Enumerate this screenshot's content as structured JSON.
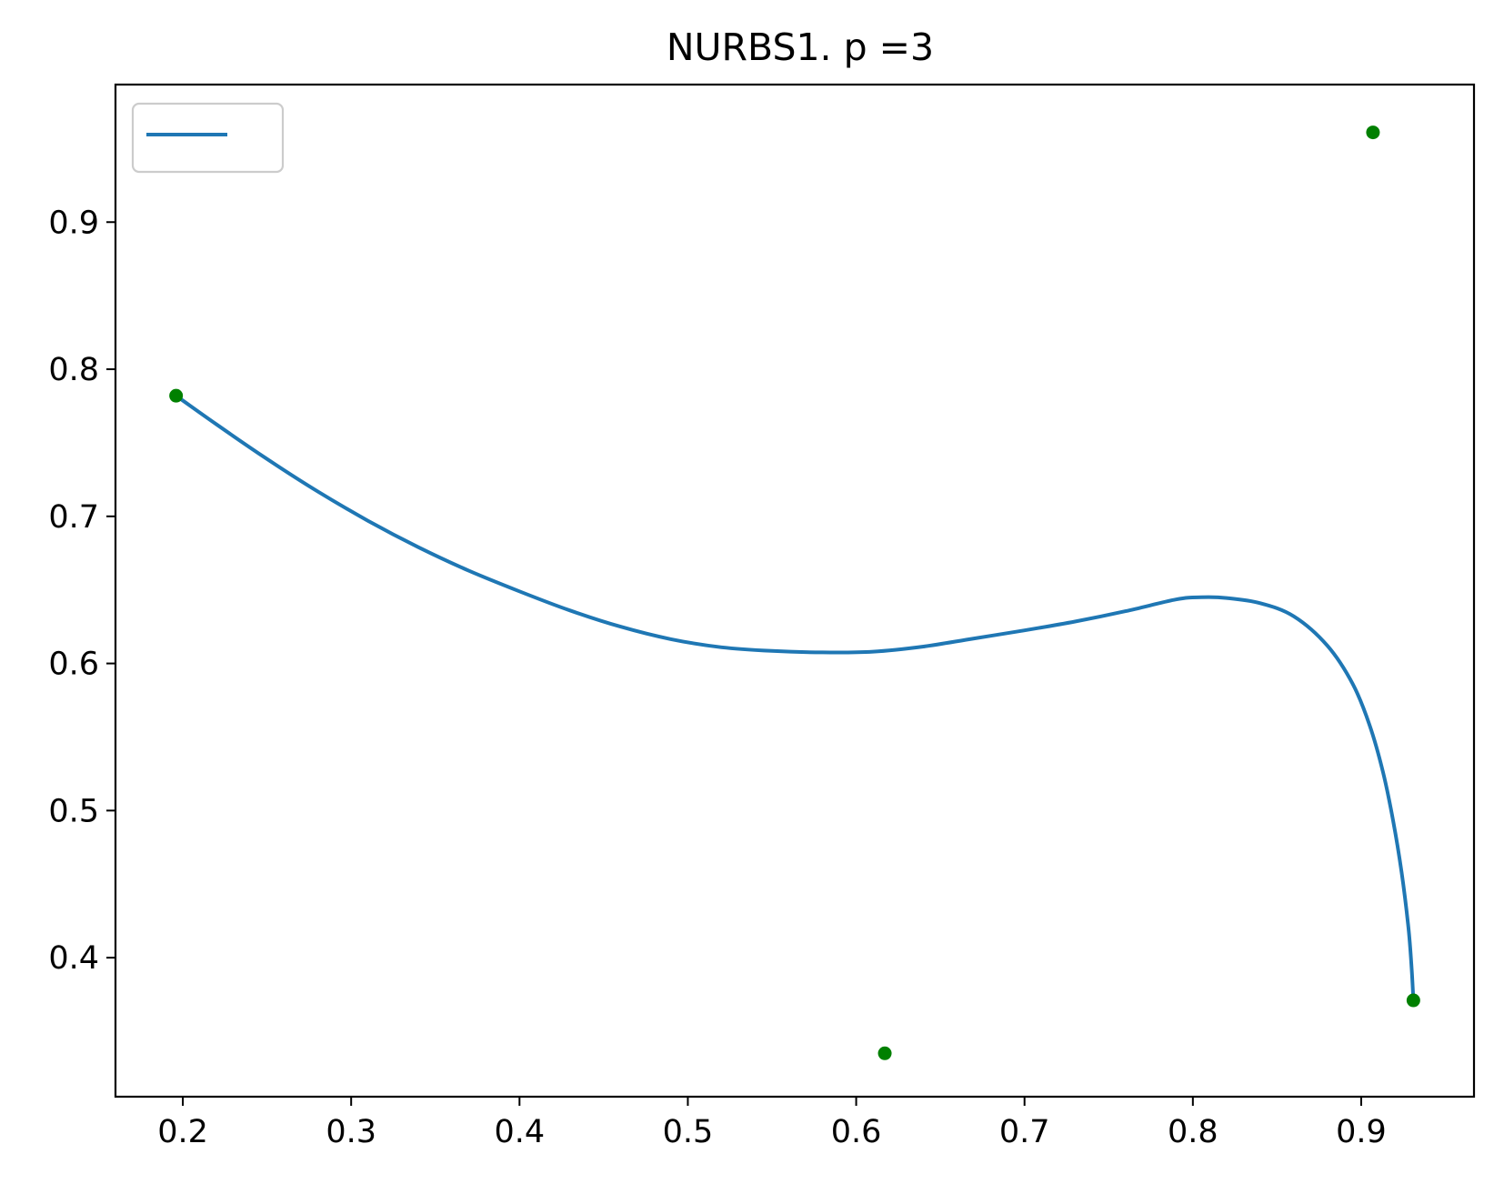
{
  "chart_data": {
    "type": "line",
    "title": "NURBS1. p =3",
    "xlabel": "",
    "ylabel": "",
    "xlim": [
      0.16,
      0.967
    ],
    "ylim": [
      0.3055,
      0.9935
    ],
    "x_ticks": [
      0.2,
      0.3,
      0.4,
      0.5,
      0.6,
      0.7,
      0.8,
      0.9
    ],
    "x_tick_labels": [
      "0.2",
      "0.3",
      "0.4",
      "0.5",
      "0.6",
      "0.7",
      "0.8",
      "0.9"
    ],
    "y_ticks": [
      0.4,
      0.5,
      0.6,
      0.7,
      0.8,
      0.9
    ],
    "y_tick_labels": [
      "0.4",
      "0.5",
      "0.6",
      "0.7",
      "0.8",
      "0.9"
    ],
    "grid": false,
    "legend": {
      "placement": "top-left",
      "entries": [
        {
          "label": "",
          "color": "#1f77b4",
          "marker": "line"
        }
      ]
    },
    "series": [
      {
        "type": "line",
        "color": "#1f77b4",
        "points": [
          [
            0.196,
            0.782
          ],
          [
            0.22,
            0.7625
          ],
          [
            0.25,
            0.739
          ],
          [
            0.28,
            0.717
          ],
          [
            0.31,
            0.697
          ],
          [
            0.34,
            0.679
          ],
          [
            0.37,
            0.663
          ],
          [
            0.4,
            0.649
          ],
          [
            0.43,
            0.636
          ],
          [
            0.46,
            0.625
          ],
          [
            0.49,
            0.6165
          ],
          [
            0.52,
            0.611
          ],
          [
            0.55,
            0.6085
          ],
          [
            0.58,
            0.6075
          ],
          [
            0.61,
            0.608
          ],
          [
            0.64,
            0.6115
          ],
          [
            0.67,
            0.617
          ],
          [
            0.7,
            0.6225
          ],
          [
            0.73,
            0.6285
          ],
          [
            0.76,
            0.6355
          ],
          [
            0.79,
            0.6435
          ],
          [
            0.805,
            0.645
          ],
          [
            0.82,
            0.6445
          ],
          [
            0.84,
            0.641
          ],
          [
            0.86,
            0.632
          ],
          [
            0.88,
            0.612
          ],
          [
            0.895,
            0.586
          ],
          [
            0.905,
            0.558
          ],
          [
            0.913,
            0.526
          ],
          [
            0.919,
            0.493
          ],
          [
            0.924,
            0.458
          ],
          [
            0.928,
            0.421
          ],
          [
            0.93,
            0.392
          ],
          [
            0.931,
            0.371
          ]
        ]
      },
      {
        "type": "scatter",
        "color": "#008000",
        "points": [
          [
            0.196,
            0.782
          ],
          [
            0.617,
            0.335
          ],
          [
            0.907,
            0.961
          ],
          [
            0.931,
            0.371
          ]
        ]
      }
    ]
  }
}
